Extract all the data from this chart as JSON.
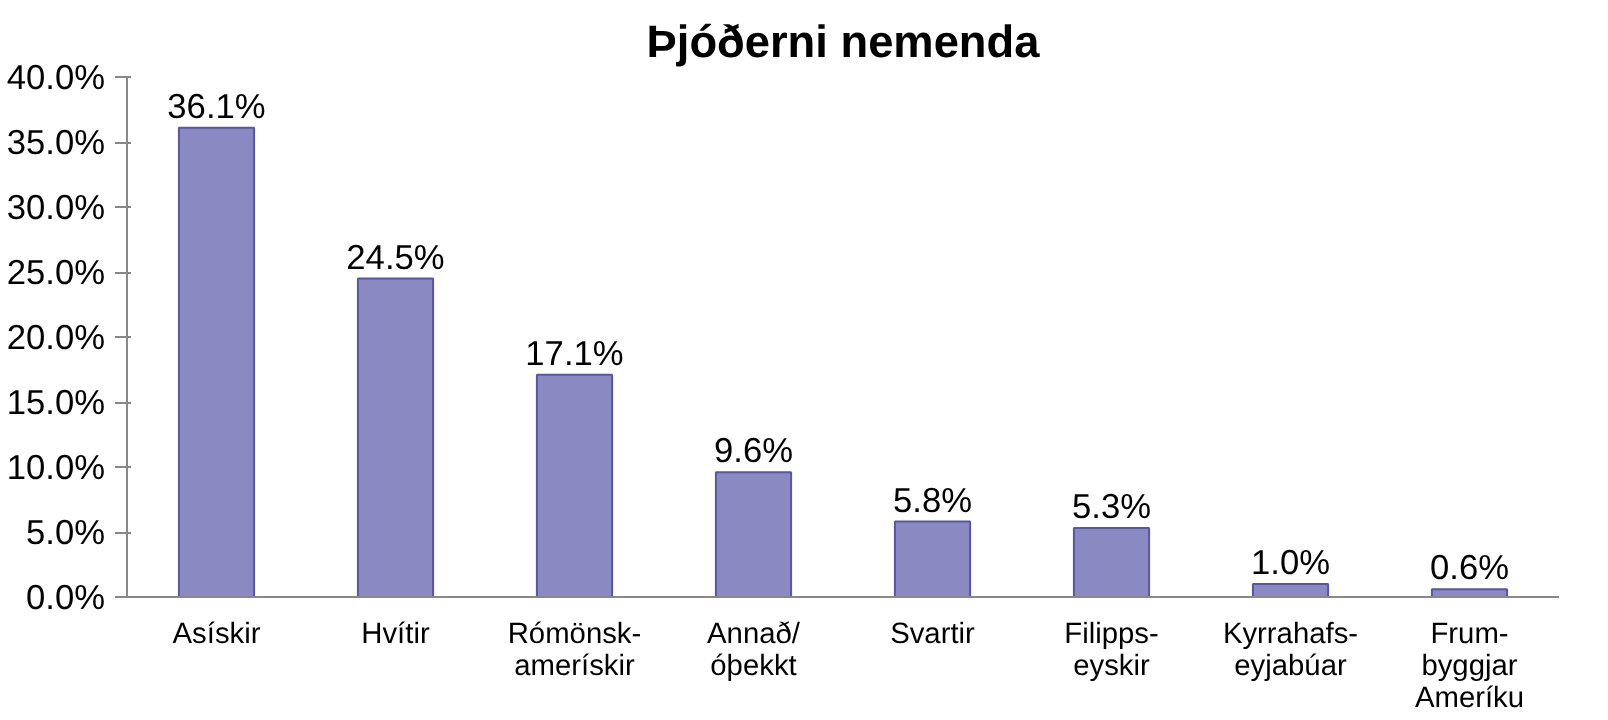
{
  "chart_data": {
    "type": "bar",
    "title": "Þjóðerni nemenda",
    "categories": [
      "Asískir",
      "Hvítir",
      "Rómönsk-\namerískir",
      "Annað/\nóþekkt",
      "Svartir",
      "Filipps-\neyskir",
      "Kyrrahafs-\neyjabúar",
      "Frum-\nbyggjar\nAmeríku"
    ],
    "values": [
      36.1,
      24.5,
      17.1,
      9.6,
      5.8,
      5.3,
      1.0,
      0.6
    ],
    "value_labels": [
      "36.1%",
      "24.5%",
      "17.1%",
      "9.6%",
      "5.8%",
      "5.3%",
      "1.0%",
      "0.6%"
    ],
    "color": "#8b89c2",
    "ylim": [
      0,
      40
    ],
    "yticks": [
      {
        "value": 0,
        "label": "0.0%"
      },
      {
        "value": 5,
        "label": "5.0%"
      },
      {
        "value": 10,
        "label": "10.0%"
      },
      {
        "value": 15,
        "label": "15.0%"
      },
      {
        "value": 20,
        "label": "20.0%"
      },
      {
        "value": 25,
        "label": "25.0%"
      },
      {
        "value": 30,
        "label": "30.0%"
      },
      {
        "value": 35,
        "label": "35.0%"
      },
      {
        "value": 40,
        "label": "40.0%"
      }
    ],
    "grid": false
  }
}
